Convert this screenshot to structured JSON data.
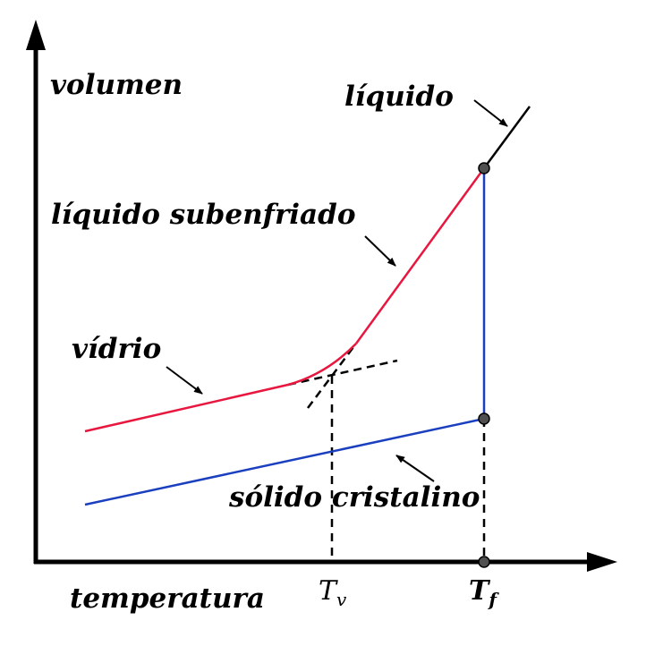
{
  "axes": {
    "y_label": "volumen",
    "x_label": "temperatura"
  },
  "labels": {
    "liquid": "líquido",
    "supercooled": "líquido subenfriado",
    "glass": "vídrio",
    "crystal": "sólido cristalino"
  },
  "ticks": {
    "tv_main": "T",
    "tv_sub": "v",
    "tf_main": "T",
    "tf_sub": "f"
  },
  "colors": {
    "liquid": "#000000",
    "supercooled_and_glass": "#e8173f",
    "crystal_and_melt": "#1a3fbf",
    "axes": "#000000",
    "points": "#505050"
  }
}
